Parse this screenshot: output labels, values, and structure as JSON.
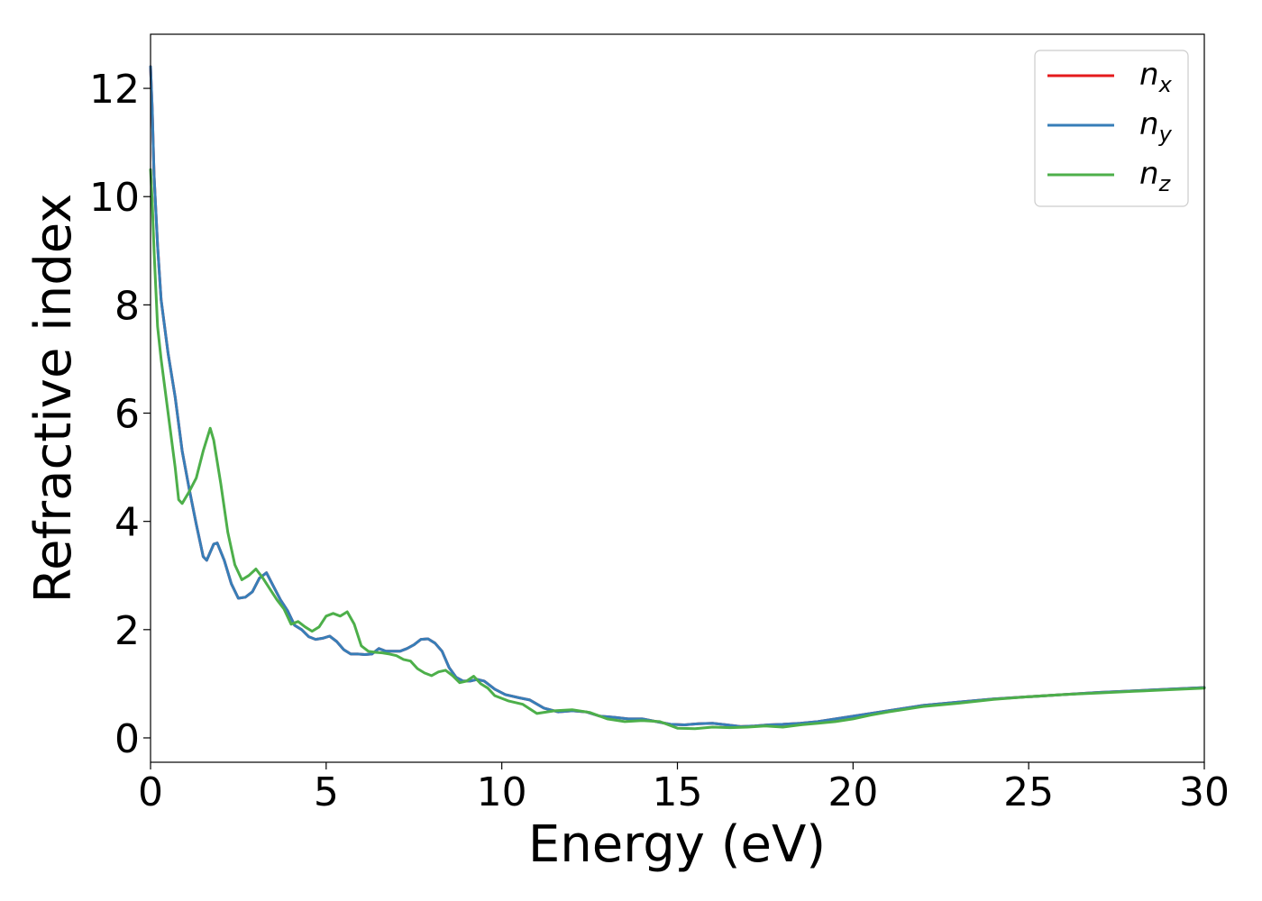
{
  "chart_data": {
    "type": "line",
    "title": "",
    "xlabel": "Energy (eV)",
    "ylabel": "Refractive index",
    "xlim": [
      0,
      30
    ],
    "ylim": [
      -0.45,
      13.0
    ],
    "xticks": [
      0,
      5,
      10,
      15,
      20,
      25,
      30
    ],
    "yticks": [
      0,
      2,
      4,
      6,
      8,
      10,
      12
    ],
    "xtick_labels": [
      "0",
      "5",
      "10",
      "15",
      "20",
      "25",
      "30"
    ],
    "ytick_labels": [
      "0",
      "2",
      "4",
      "6",
      "8",
      "10",
      "12"
    ],
    "grid": false,
    "legend_position": "top-right",
    "series": [
      {
        "name": "n_x",
        "label_main": "n",
        "label_sub": "x",
        "color": "#e41a1c",
        "x": [
          0,
          0.05,
          0.1,
          0.2,
          0.3,
          0.5,
          0.7,
          0.9,
          1.1,
          1.3,
          1.5,
          1.6,
          1.8,
          1.9,
          2.1,
          2.3,
          2.5,
          2.7,
          2.9,
          3.1,
          3.3,
          3.5,
          3.7,
          3.9,
          4.1,
          4.3,
          4.5,
          4.7,
          4.9,
          5.1,
          5.3,
          5.5,
          5.7,
          5.9,
          6.1,
          6.3,
          6.5,
          6.7,
          6.9,
          7.1,
          7.3,
          7.5,
          7.7,
          7.9,
          8.1,
          8.3,
          8.5,
          8.7,
          8.9,
          9.1,
          9.3,
          9.5,
          9.8,
          10.1,
          10.5,
          10.8,
          11.2,
          11.6,
          12.0,
          12.4,
          12.8,
          13.2,
          13.6,
          14.0,
          14.4,
          14.8,
          15.2,
          15.6,
          16.0,
          16.4,
          16.8,
          17.2,
          17.6,
          18.0,
          18.5,
          19.0,
          19.5,
          20.0,
          20.5,
          21.0,
          21.5,
          22.0,
          23.0,
          24.0,
          25.0,
          26.0,
          27.0,
          28.0,
          29.0,
          30.0
        ],
        "y": [
          12.4,
          11.6,
          10.4,
          9.1,
          8.1,
          7.1,
          6.3,
          5.3,
          4.6,
          3.95,
          3.35,
          3.28,
          3.58,
          3.6,
          3.28,
          2.85,
          2.58,
          2.6,
          2.7,
          2.95,
          3.05,
          2.8,
          2.55,
          2.35,
          2.08,
          2.0,
          1.87,
          1.82,
          1.84,
          1.88,
          1.78,
          1.63,
          1.55,
          1.55,
          1.54,
          1.55,
          1.65,
          1.6,
          1.6,
          1.6,
          1.65,
          1.72,
          1.82,
          1.83,
          1.75,
          1.6,
          1.3,
          1.12,
          1.05,
          1.05,
          1.08,
          1.05,
          0.9,
          0.8,
          0.74,
          0.7,
          0.55,
          0.48,
          0.5,
          0.48,
          0.4,
          0.38,
          0.35,
          0.35,
          0.3,
          0.25,
          0.24,
          0.26,
          0.27,
          0.24,
          0.21,
          0.22,
          0.24,
          0.25,
          0.27,
          0.3,
          0.35,
          0.4,
          0.45,
          0.5,
          0.55,
          0.6,
          0.66,
          0.72,
          0.76,
          0.8,
          0.84,
          0.87,
          0.9,
          0.93
        ]
      },
      {
        "name": "n_y",
        "label_main": "n",
        "label_sub": "y",
        "color": "#377eb8",
        "x": [
          0,
          0.05,
          0.1,
          0.2,
          0.3,
          0.5,
          0.7,
          0.9,
          1.1,
          1.3,
          1.5,
          1.6,
          1.8,
          1.9,
          2.1,
          2.3,
          2.5,
          2.7,
          2.9,
          3.1,
          3.3,
          3.5,
          3.7,
          3.9,
          4.1,
          4.3,
          4.5,
          4.7,
          4.9,
          5.1,
          5.3,
          5.5,
          5.7,
          5.9,
          6.1,
          6.3,
          6.5,
          6.7,
          6.9,
          7.1,
          7.3,
          7.5,
          7.7,
          7.9,
          8.1,
          8.3,
          8.5,
          8.7,
          8.9,
          9.1,
          9.3,
          9.5,
          9.8,
          10.1,
          10.5,
          10.8,
          11.2,
          11.6,
          12.0,
          12.4,
          12.8,
          13.2,
          13.6,
          14.0,
          14.4,
          14.8,
          15.2,
          15.6,
          16.0,
          16.4,
          16.8,
          17.2,
          17.6,
          18.0,
          18.5,
          19.0,
          19.5,
          20.0,
          20.5,
          21.0,
          21.5,
          22.0,
          23.0,
          24.0,
          25.0,
          26.0,
          27.0,
          28.0,
          29.0,
          30.0
        ],
        "y": [
          12.4,
          11.6,
          10.4,
          9.1,
          8.1,
          7.1,
          6.3,
          5.3,
          4.6,
          3.95,
          3.35,
          3.28,
          3.58,
          3.6,
          3.28,
          2.85,
          2.58,
          2.6,
          2.7,
          2.95,
          3.05,
          2.8,
          2.55,
          2.35,
          2.08,
          2.0,
          1.87,
          1.82,
          1.84,
          1.88,
          1.78,
          1.63,
          1.55,
          1.55,
          1.54,
          1.55,
          1.65,
          1.6,
          1.6,
          1.6,
          1.65,
          1.72,
          1.82,
          1.83,
          1.75,
          1.6,
          1.3,
          1.12,
          1.05,
          1.05,
          1.08,
          1.05,
          0.9,
          0.8,
          0.74,
          0.7,
          0.55,
          0.48,
          0.5,
          0.48,
          0.4,
          0.38,
          0.35,
          0.35,
          0.3,
          0.25,
          0.24,
          0.26,
          0.27,
          0.24,
          0.21,
          0.22,
          0.24,
          0.25,
          0.27,
          0.3,
          0.35,
          0.4,
          0.45,
          0.5,
          0.55,
          0.6,
          0.66,
          0.72,
          0.76,
          0.8,
          0.84,
          0.87,
          0.9,
          0.93
        ]
      },
      {
        "name": "n_z",
        "label_main": "n",
        "label_sub": "z",
        "color": "#4daf4a",
        "x": [
          0,
          0.05,
          0.1,
          0.2,
          0.3,
          0.5,
          0.7,
          0.8,
          0.9,
          1.1,
          1.3,
          1.5,
          1.7,
          1.8,
          2.0,
          2.2,
          2.4,
          2.6,
          2.8,
          3.0,
          3.2,
          3.4,
          3.6,
          3.8,
          4.0,
          4.2,
          4.4,
          4.6,
          4.8,
          5.0,
          5.2,
          5.4,
          5.6,
          5.8,
          6.0,
          6.2,
          6.4,
          6.6,
          6.8,
          7.0,
          7.2,
          7.4,
          7.6,
          7.8,
          8.0,
          8.2,
          8.4,
          8.6,
          8.8,
          9.0,
          9.2,
          9.4,
          9.6,
          9.8,
          10.2,
          10.6,
          11.0,
          11.5,
          12.0,
          12.5,
          13.0,
          13.5,
          14.0,
          14.5,
          15.0,
          15.5,
          16.0,
          16.5,
          17.0,
          17.5,
          18.0,
          18.5,
          19.0,
          19.5,
          20.0,
          20.5,
          21.0,
          21.5,
          22.0,
          23.0,
          24.0,
          25.0,
          26.0,
          27.0,
          28.0,
          29.0,
          30.0
        ],
        "y": [
          10.5,
          9.9,
          9.0,
          7.6,
          7.0,
          6.0,
          5.0,
          4.4,
          4.33,
          4.55,
          4.8,
          5.3,
          5.72,
          5.5,
          4.7,
          3.8,
          3.2,
          2.92,
          3.0,
          3.12,
          2.95,
          2.75,
          2.55,
          2.38,
          2.1,
          2.15,
          2.05,
          1.97,
          2.05,
          2.25,
          2.3,
          2.25,
          2.33,
          2.1,
          1.7,
          1.6,
          1.58,
          1.57,
          1.55,
          1.52,
          1.45,
          1.42,
          1.28,
          1.2,
          1.15,
          1.22,
          1.25,
          1.15,
          1.02,
          1.05,
          1.14,
          1.0,
          0.92,
          0.78,
          0.68,
          0.62,
          0.45,
          0.5,
          0.52,
          0.47,
          0.35,
          0.3,
          0.32,
          0.3,
          0.18,
          0.17,
          0.2,
          0.19,
          0.2,
          0.22,
          0.2,
          0.24,
          0.27,
          0.3,
          0.35,
          0.42,
          0.48,
          0.53,
          0.58,
          0.64,
          0.71,
          0.76,
          0.8,
          0.83,
          0.86,
          0.89,
          0.92
        ]
      }
    ]
  }
}
